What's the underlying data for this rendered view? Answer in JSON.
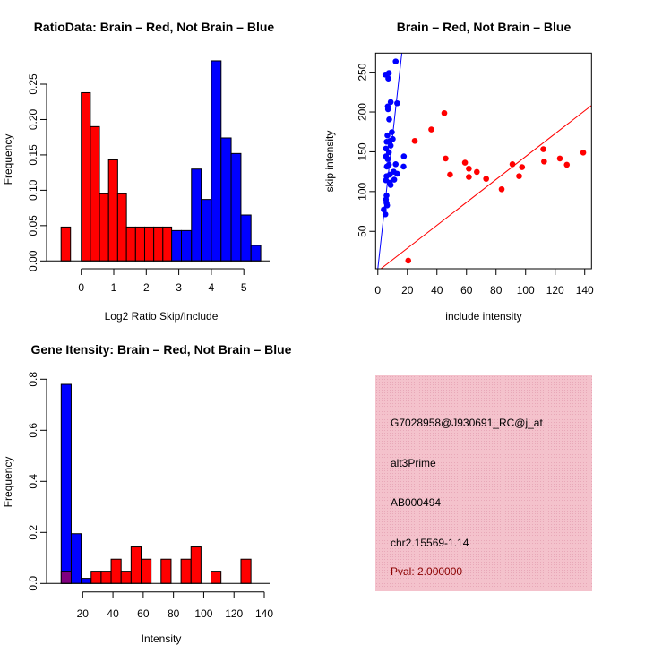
{
  "chart_data": [
    {
      "type": "bar",
      "subtype": "histogram",
      "title": "RatioData: Brain – Red, Not Brain – Blue",
      "xlabel": "Log2 Ratio Skip/Include",
      "ylabel": "Frequency",
      "xticks": [
        "0",
        "1",
        "2",
        "3",
        "4",
        "5"
      ],
      "yticks": [
        "0.00",
        "0.05",
        "0.10",
        "0.15",
        "0.20",
        "0.25"
      ],
      "xlim": [
        -0.7,
        5.8
      ],
      "ylim": [
        0,
        0.285
      ],
      "series": [
        {
          "name": "Brain",
          "color": "#ff0000",
          "bins": [
            [
              -0.62,
              -0.33,
              0.048
            ],
            [
              0,
              0.28,
              0.238
            ],
            [
              0.28,
              0.56,
              0.19
            ],
            [
              0.56,
              0.84,
              0.095
            ],
            [
              0.84,
              1.12,
              0.143
            ],
            [
              1.12,
              1.39,
              0.095
            ],
            [
              1.39,
              1.67,
              0.048
            ],
            [
              1.67,
              1.95,
              0.048
            ],
            [
              1.95,
              2.23,
              0.048
            ],
            [
              2.23,
              2.51,
              0.048
            ],
            [
              2.51,
              2.78,
              0.048
            ]
          ]
        },
        {
          "name": "Not Brain",
          "color": "#0000ff",
          "bins": [
            [
              2.78,
              3.08,
              0.043
            ],
            [
              3.08,
              3.39,
              0.043
            ],
            [
              3.39,
              3.69,
              0.13
            ],
            [
              3.69,
              4.0,
              0.087
            ],
            [
              4.0,
              4.3,
              0.283
            ],
            [
              4.3,
              4.61,
              0.174
            ],
            [
              4.61,
              4.91,
              0.152
            ],
            [
              4.91,
              5.22,
              0.065
            ],
            [
              5.22,
              5.52,
              0.022
            ]
          ]
        }
      ]
    },
    {
      "type": "scatter",
      "title": "Brain – Red, Not Brain – Blue",
      "xlabel": "include intensity",
      "ylabel": "skip intensity",
      "xticks": [
        "0",
        "20",
        "40",
        "60",
        "80",
        "100",
        "120",
        "140"
      ],
      "yticks": [
        "50",
        "100",
        "150",
        "200",
        "250"
      ],
      "xlim": [
        -1.5,
        144.6
      ],
      "ylim": [
        3,
        274
      ],
      "series": [
        {
          "name": "Brain",
          "color": "#ff0000",
          "fit_slope": 1.44,
          "fit_intercept": 0,
          "points": [
            [
              25,
              163.7
            ],
            [
              36.2,
              178
            ],
            [
              45,
              198.6
            ],
            [
              45.9,
              141.6
            ],
            [
              48.9,
              121.3
            ],
            [
              59,
              136.3
            ],
            [
              61.6,
              128.8
            ],
            [
              61.6,
              118.3
            ],
            [
              67,
              124.7
            ],
            [
              73.3,
              116
            ],
            [
              83.8,
              102.9
            ],
            [
              91.1,
              134.4
            ],
            [
              97.6,
              130.7
            ],
            [
              95.6,
              119.4
            ],
            [
              112,
              153.2
            ],
            [
              112.5,
              137.8
            ],
            [
              123.2,
              141.6
            ],
            [
              127.9,
              133.7
            ],
            [
              139,
              149
            ],
            [
              20.6,
              13.2
            ]
          ]
        },
        {
          "name": "Not Brain",
          "color": "#0000ff",
          "fit_slope": 16.7,
          "fit_intercept": 3,
          "points": [
            [
              12.1,
              263.5
            ],
            [
              5.1,
              247
            ],
            [
              7.5,
              249
            ],
            [
              7.1,
              242
            ],
            [
              8.7,
              212.5
            ],
            [
              13.1,
              211
            ],
            [
              6.7,
              207
            ],
            [
              6.9,
              203.5
            ],
            [
              7.7,
              190.7
            ],
            [
              9.5,
              174.6
            ],
            [
              6.5,
              170.5
            ],
            [
              10.1,
              166
            ],
            [
              6,
              162.6
            ],
            [
              8.3,
              163.7
            ],
            [
              8.7,
              157.7
            ],
            [
              5.5,
              154
            ],
            [
              7.5,
              149.4
            ],
            [
              17.6,
              144.2
            ],
            [
              5.5,
              144.2
            ],
            [
              6.7,
              140.8
            ],
            [
              12.1,
              134.4
            ],
            [
              6.1,
              131.4
            ],
            [
              17.4,
              131.4
            ],
            [
              7.5,
              133.7
            ],
            [
              10.7,
              125
            ],
            [
              13.1,
              122.4
            ],
            [
              5.9,
              119.4
            ],
            [
              11.1,
              115
            ],
            [
              5.5,
              114.2
            ],
            [
              8.1,
              111.2
            ],
            [
              8.7,
              108.2
            ],
            [
              5.9,
              95
            ],
            [
              5.5,
              90
            ],
            [
              5.9,
              85.6
            ],
            [
              6.3,
              82.6
            ],
            [
              4,
              77.4
            ],
            [
              5.1,
              71.4
            ],
            [
              8.1,
              121.3
            ]
          ]
        }
      ]
    },
    {
      "type": "bar",
      "subtype": "histogram",
      "title": "Gene Itensity: Brain – Red, Not Brain – Blue",
      "xlabel": "Intensity",
      "ylabel": "Frequency",
      "xticks": [
        "20",
        "40",
        "60",
        "80",
        "100",
        "120",
        "140"
      ],
      "yticks": [
        "0.0",
        "0.2",
        "0.4",
        "0.6",
        "0.8"
      ],
      "bin_start": 5.8,
      "bin_width": 6.6,
      "ylim": [
        0,
        0.8
      ],
      "overlap_color": "#800080",
      "series": [
        {
          "name": "Not Brain",
          "color": "#0000ff",
          "values": [
            0.78,
            0.195,
            0.02
          ]
        },
        {
          "name": "Brain",
          "color": "#ff0000",
          "values": [
            0.048,
            0,
            0,
            0.048,
            0.048,
            0.095,
            0.048,
            0.143,
            0.095,
            0,
            0.095,
            0,
            0.095,
            0.143,
            0,
            0.048,
            0,
            0,
            0.095
          ]
        }
      ]
    }
  ],
  "info_panel": {
    "background": "#f4c2cc",
    "lines": [
      "G7028958@J930691_RC@j_at",
      "alt3Prime",
      "AB000494",
      "chr2.15569-1.14"
    ],
    "pval": "Pval: 2.000000",
    "pval_color": "#8b0000"
  }
}
